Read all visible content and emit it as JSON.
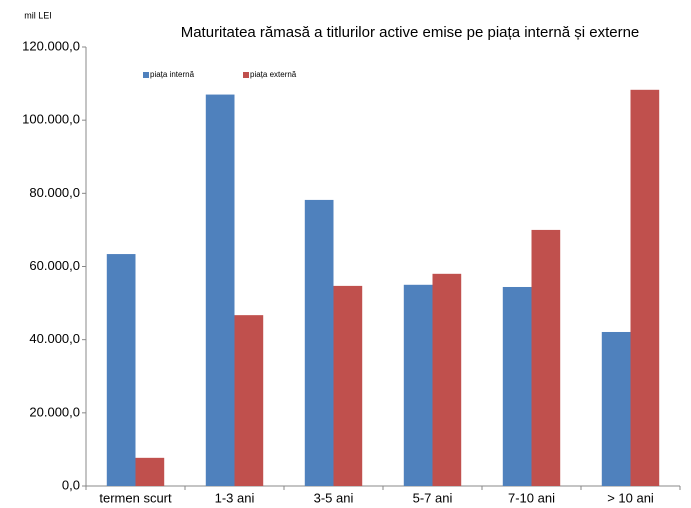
{
  "chart_data": {
    "type": "bar",
    "title": "Maturitatea rămasă a titlurilor active emise pe piața internă și externe",
    "y_axis_label": "mil LEI",
    "categories": [
      "termen scurt",
      "1-3 ani",
      "3-5 ani",
      "5-7 ani",
      "7-10 ani",
      "> 10 ani"
    ],
    "series": [
      {
        "name": "piața internă",
        "color": "#4f81bd",
        "values": [
          63400,
          107000,
          78200,
          55000,
          54400,
          42100
        ]
      },
      {
        "name": "piața externă",
        "color": "#c0504d",
        "values": [
          7700,
          46700,
          54700,
          58000,
          70000,
          108300
        ]
      }
    ],
    "ylim": [
      0,
      120000
    ],
    "yticks": [
      {
        "value": 0,
        "label": "0,0"
      },
      {
        "value": 20000,
        "label": "20.000,0"
      },
      {
        "value": 40000,
        "label": "40.000,0"
      },
      {
        "value": 60000,
        "label": "60.000,0"
      },
      {
        "value": 80000,
        "label": "80.000,0"
      },
      {
        "value": 100000,
        "label": "100.000,0"
      },
      {
        "value": 120000,
        "label": "120.000,0"
      }
    ],
    "legend": "top-left",
    "grid": false
  }
}
